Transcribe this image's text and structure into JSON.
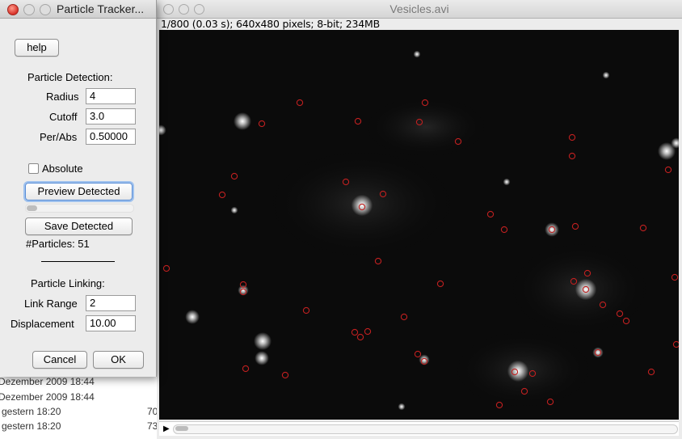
{
  "background_list": {
    "rows": [
      {
        "date": "Dezember 2009 18:44",
        "size": ""
      },
      {
        "date": "Dezember 2009 18:44",
        "size": ""
      },
      {
        "date": "gestern 18:20",
        "size": "70"
      },
      {
        "date": "gestern 18:20",
        "size": "73"
      }
    ]
  },
  "image_window": {
    "title": "Vesicles.avi",
    "info": "1/800 (0.03 s); 640x480 pixels; 8-bit; 234MB",
    "play_icon": "play-triangle",
    "scroll_fraction": 0.0
  },
  "dialog": {
    "title": "Particle Tracker...",
    "help_label": "help",
    "detection_heading": "Particle Detection:",
    "radius_label": "Radius",
    "radius_value": "4",
    "cutoff_label": "Cutoff",
    "cutoff_value": "3.0",
    "perabs_label": "Per/Abs",
    "perabs_value": "0.50000",
    "absolute_label": "Absolute",
    "absolute_checked": false,
    "preview_label": "Preview Detected",
    "preview_progress": 0.1,
    "save_label": "Save Detected",
    "particles_text": "#Particles: 51",
    "linking_heading": "Particle Linking:",
    "linkrange_label": "Link Range",
    "linkrange_value": "2",
    "displacement_label": "Displacement",
    "displacement_value": "10.00",
    "cancel_label": "Cancel",
    "ok_label": "OK"
  },
  "colors": {
    "marker": "#c02020",
    "image_bg": "#0b0b0b",
    "close_button": "#d8322a"
  }
}
